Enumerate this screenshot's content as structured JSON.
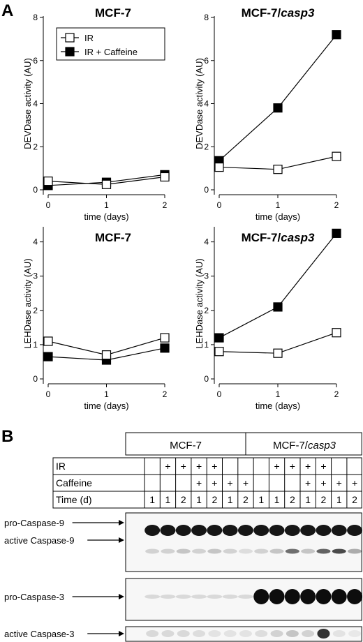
{
  "panel_a_label": "A",
  "panel_b_label": "B",
  "chart_data": [
    {
      "type": "line",
      "title": "MCF-7",
      "title_italic_part": "",
      "xlabel": "time (days)",
      "ylabel": "DEVDase activity (AU)",
      "x": [
        0,
        1,
        2
      ],
      "xticks": [
        0,
        1,
        2
      ],
      "ylim": [
        0,
        8
      ],
      "yticks": [
        0,
        2,
        4,
        6,
        8
      ],
      "legend": {
        "placement": "top-left",
        "entries": [
          "IR",
          "IR + Caffeine"
        ]
      },
      "series": [
        {
          "name": "IR",
          "marker": "open-square",
          "values": [
            0.4,
            0.25,
            0.6
          ]
        },
        {
          "name": "IR + Caffeine",
          "marker": "filled-square",
          "values": [
            0.2,
            0.35,
            0.7
          ]
        }
      ]
    },
    {
      "type": "line",
      "title": "MCF-7/",
      "title_italic_part": "casp3",
      "xlabel": "time (days)",
      "ylabel": "DEVDase activity (AU)",
      "x": [
        0,
        1,
        2
      ],
      "xticks": [
        0,
        1,
        2
      ],
      "ylim": [
        0,
        8
      ],
      "yticks": [
        0,
        2,
        4,
        6,
        8
      ],
      "series": [
        {
          "name": "IR",
          "marker": "open-square",
          "values": [
            1.05,
            0.95,
            1.55
          ]
        },
        {
          "name": "IR + Caffeine",
          "marker": "filled-square",
          "values": [
            1.35,
            3.8,
            7.2
          ]
        }
      ]
    },
    {
      "type": "line",
      "title": "MCF-7",
      "title_italic_part": "",
      "xlabel": "time (days)",
      "ylabel": "LEHDase activity (AU)",
      "x": [
        0,
        1,
        2
      ],
      "xticks": [
        0,
        1,
        2
      ],
      "ylim": [
        0,
        4.4
      ],
      "yticks": [
        0,
        1,
        2,
        3,
        4
      ],
      "series": [
        {
          "name": "IR",
          "marker": "open-square",
          "values": [
            1.1,
            0.7,
            1.2
          ]
        },
        {
          "name": "IR + Caffeine",
          "marker": "filled-square",
          "values": [
            0.65,
            0.55,
            0.9
          ]
        }
      ]
    },
    {
      "type": "line",
      "title": "MCF-7/",
      "title_italic_part": "casp3",
      "xlabel": "time (days)",
      "ylabel": "LEHDase activity (AU)",
      "x": [
        0,
        1,
        2
      ],
      "xticks": [
        0,
        1,
        2
      ],
      "ylim": [
        0,
        4.4
      ],
      "yticks": [
        0,
        1,
        2,
        3,
        4
      ],
      "series": [
        {
          "name": "IR",
          "marker": "open-square",
          "values": [
            0.8,
            0.75,
            1.35
          ]
        },
        {
          "name": "IR + Caffeine",
          "marker": "filled-square",
          "values": [
            1.2,
            2.1,
            4.25
          ]
        }
      ]
    }
  ],
  "blot": {
    "groups": [
      {
        "label": "MCF-7",
        "italic": ""
      },
      {
        "label": "MCF-7/",
        "italic": "casp3"
      }
    ],
    "rows": [
      {
        "label": "IR",
        "cells": [
          "",
          "+",
          "+",
          "+",
          "+",
          "",
          "",
          "",
          "+",
          "+",
          "+",
          "+",
          "",
          ""
        ]
      },
      {
        "label": "Caffeine",
        "cells": [
          "",
          "",
          "",
          "+",
          "+",
          "+",
          "+",
          "",
          "",
          "",
          "+",
          "+",
          "+",
          "+"
        ]
      },
      {
        "label": "Time (d)",
        "cells": [
          "1",
          "1",
          "2",
          "1",
          "2",
          "1",
          "2",
          "1",
          "1",
          "2",
          "1",
          "2",
          "1",
          "2"
        ]
      }
    ],
    "band_labels": {
      "pro_caspase9": "pro-Caspase-9",
      "active_caspase9": "active Caspase-9",
      "pro_caspase3": "pro-Caspase-3",
      "active_caspase3": "active Caspase-3"
    }
  }
}
